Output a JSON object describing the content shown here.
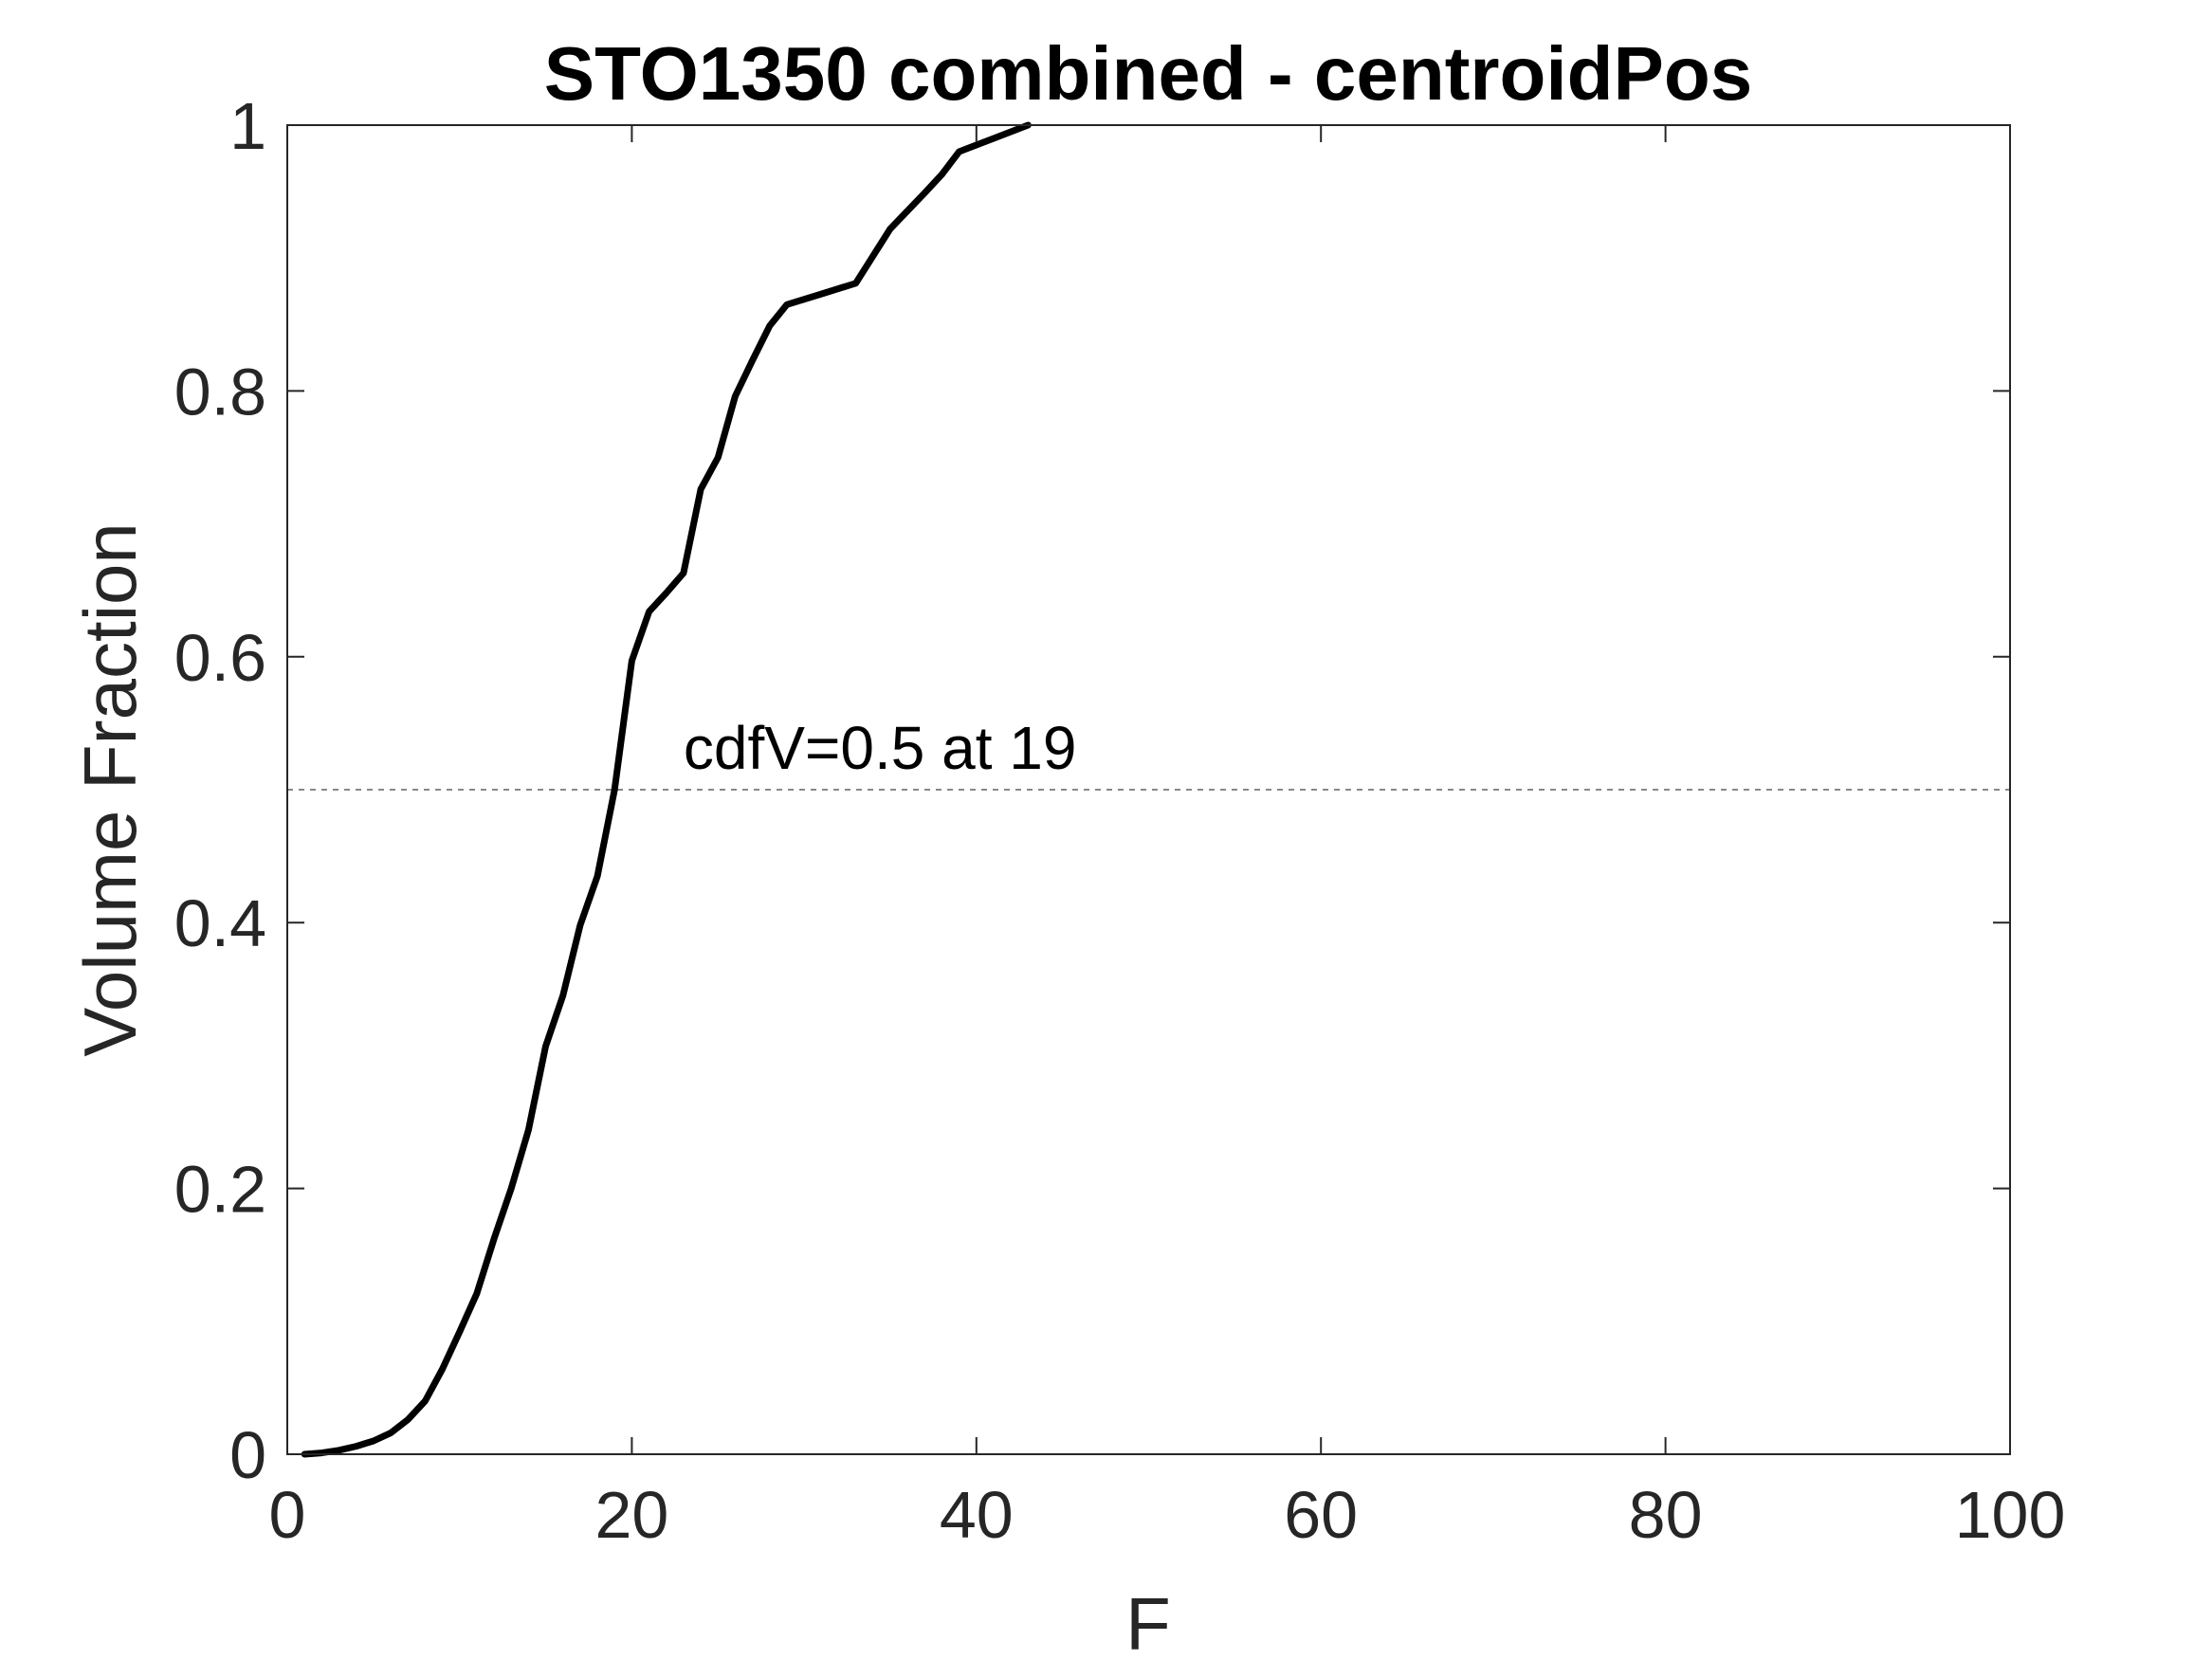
{
  "chart_data": {
    "type": "line",
    "title": "STO1350 combined - centroidPos",
    "xlabel": "F",
    "ylabel": "Volume Fraction",
    "xlim": [
      0,
      100
    ],
    "ylim": [
      0,
      1
    ],
    "xticks": [
      0,
      20,
      40,
      60,
      80,
      100
    ],
    "yticks": [
      0,
      0.2,
      0.4,
      0.6,
      0.8,
      1
    ],
    "xtick_labels": [
      "0",
      "20",
      "40",
      "60",
      "80",
      "100"
    ],
    "ytick_labels": [
      "0",
      "0.2",
      "0.4",
      "0.6",
      "0.8",
      "1"
    ],
    "grid": false,
    "box": true,
    "series": [
      {
        "color": "#000000",
        "x": [
          1,
          2,
          3,
          4,
          5,
          6,
          7,
          8,
          9,
          10,
          11,
          12,
          13,
          14,
          15,
          16,
          17,
          18,
          19,
          20,
          21,
          22,
          23,
          24,
          25,
          26,
          27,
          28,
          29,
          31,
          33,
          35,
          37,
          38,
          39,
          41,
          43
        ],
        "y": [
          0.0,
          0.001,
          0.003,
          0.006,
          0.01,
          0.016,
          0.026,
          0.04,
          0.064,
          0.092,
          0.121,
          0.162,
          0.2,
          0.244,
          0.307,
          0.345,
          0.398,
          0.435,
          0.5,
          0.597,
          0.634,
          0.648,
          0.663,
          0.726,
          0.75,
          0.796,
          0.823,
          0.849,
          0.865,
          0.873,
          0.881,
          0.922,
          0.949,
          0.963,
          0.98,
          0.99,
          1.0
        ]
      }
    ],
    "reference_lines": [
      {
        "orientation": "horizontal",
        "y": 0.5,
        "style": "dashed",
        "color": "#888888"
      }
    ],
    "annotations": [
      {
        "text": "cdfV=0.5 at 19",
        "x": 23,
        "y": 0.5
      }
    ]
  }
}
